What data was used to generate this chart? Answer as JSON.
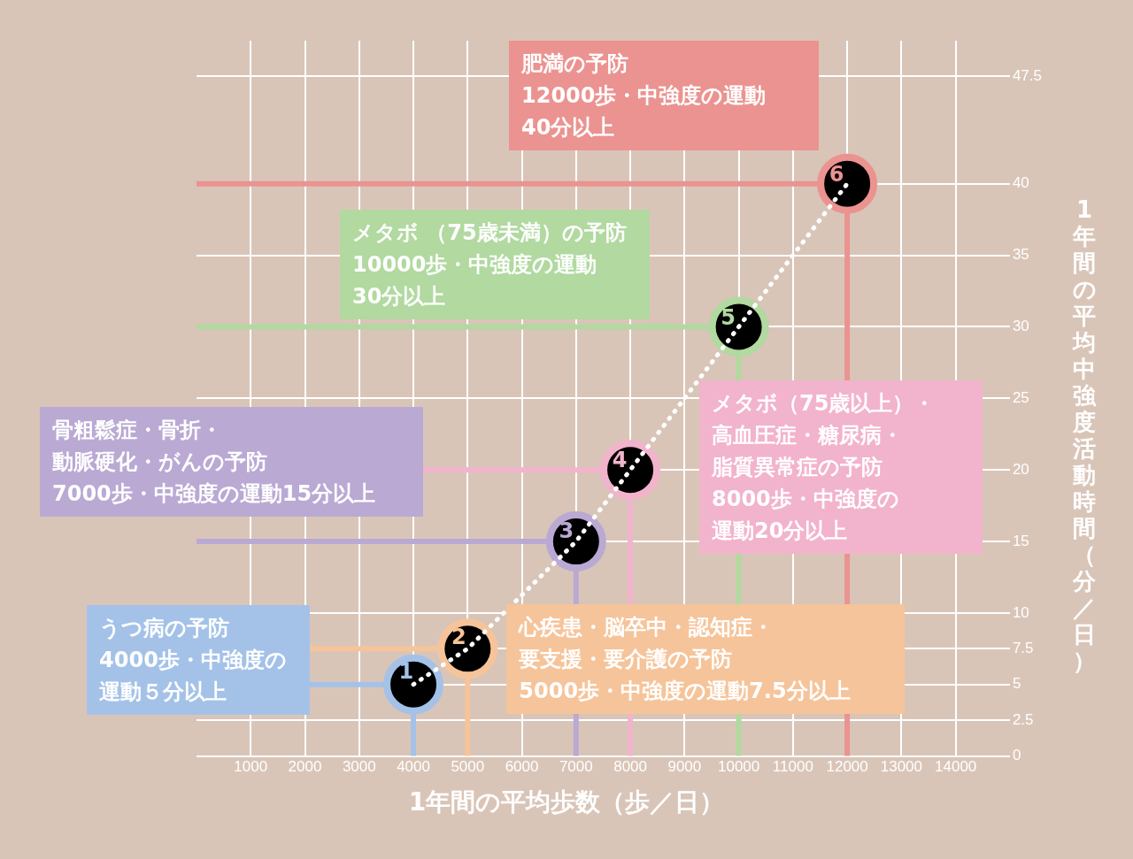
{
  "chart_data": {
    "type": "line",
    "xlabel": "1年間の平均歩数（歩／日）",
    "ylabel": "1年間の平均中強度活動時間（分／日）",
    "x": [
      4000,
      5000,
      7000,
      8000,
      10000,
      12000
    ],
    "series": [
      {
        "color": "#ffffff",
        "colors": [
          "#a4c2e8",
          "#f6c49a",
          "#b9a9d3",
          "#f2b3cc",
          "#b1d9a0",
          "#eb9390"
        ],
        "values": [
          5,
          7.5,
          15,
          20,
          30,
          40
        ]
      }
    ],
    "line_style": "dotted",
    "xlim": [
      0,
      15000
    ],
    "xticks": [
      1000,
      2000,
      3000,
      4000,
      5000,
      6000,
      7000,
      8000,
      9000,
      10000,
      11000,
      12000,
      13000,
      14000
    ],
    "ylim": [
      0,
      50
    ],
    "yticks": [
      0,
      2.5,
      5,
      7.5,
      10,
      15,
      20,
      25,
      30,
      35,
      40,
      47.5
    ],
    "grid": true,
    "legend": false,
    "annotations": [
      {
        "text": "1",
        "x": 4000,
        "y": 5
      },
      {
        "text": "2",
        "x": 5000,
        "y": 7.5
      },
      {
        "text": "3",
        "x": 7000,
        "y": 15
      },
      {
        "text": "4",
        "x": 8000,
        "y": 20
      },
      {
        "text": "5",
        "x": 10000,
        "y": 30
      },
      {
        "text": "6",
        "x": 12000,
        "y": 40
      },
      {
        "text": "うつ病の予防\n4000歩・中強度の運動５分以上",
        "x": 4000,
        "y": 5
      },
      {
        "text": "心疾患・脳卒中・認知症・要支援・要介護の予防\n5000歩・中強度の運動7.5分以上",
        "x": 5000,
        "y": 7.5
      },
      "骨粗鬆症・骨折・動脈硬化・がんの予防\n7000歩・中強度の運動15分以上",
      "メタボ（75歳以上）・高血圧症・糖尿病・脂質異常症の予防\n8000歩・中強度の運動20分以上",
      "メタボ （75歳未満）の予防\n10000歩・中強度の運動\n30分以上",
      "肥満の予防\n12000歩・中強度の運動\n40分以上"
    ]
  }
}
